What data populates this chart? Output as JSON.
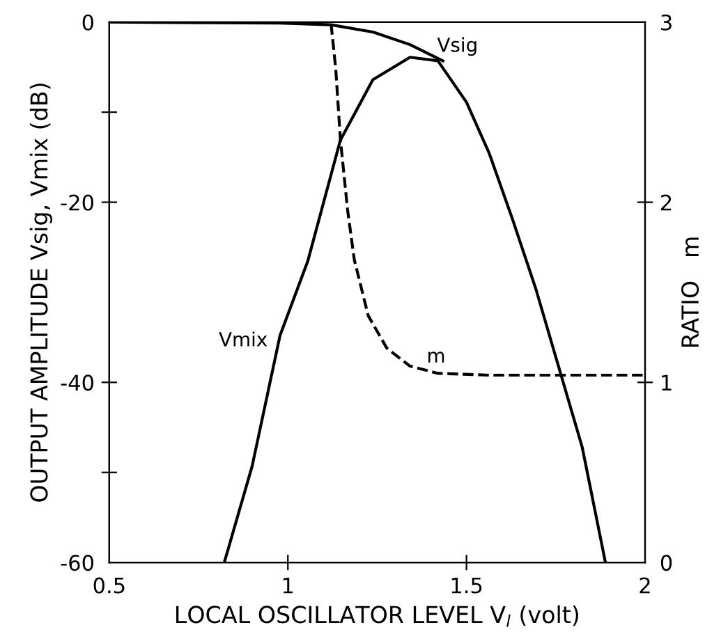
{
  "chart_data": {
    "type": "line",
    "xlabel": "LOCAL OSCILLATOR LEVEL V$_{l}$ (volt)",
    "ylabel": "OUTPUT AMPLITUDE Vsig, Vmix (dB)",
    "y2label": "RATIO   m",
    "xlim": [
      0.5,
      2
    ],
    "xticks": [
      0.5,
      1,
      1.5,
      2
    ],
    "ylim": [
      -60,
      0
    ],
    "yticks": [
      0,
      {
        "value": -10,
        "label": null
      },
      -20,
      -40,
      {
        "value": -50,
        "label": null
      },
      -60
    ],
    "y2lim": [
      0,
      3
    ],
    "y2ticks": [
      0,
      1,
      2,
      3
    ],
    "grid": false,
    "legend": false,
    "series": [
      {
        "color": "#000000",
        "line_style": "solid",
        "x": [
          0.822,
          0.9,
          0.978,
          1.056,
          1.147,
          1.238,
          1.342,
          1.42,
          1.5,
          1.564,
          1.629,
          1.694,
          1.759,
          1.824,
          1.889
        ],
        "values": [
          -60,
          -49.3,
          -34.8,
          -26.5,
          -13.1,
          -6.4,
          -3.9,
          -4.3,
          -8.9,
          -14.6,
          -21.9,
          -29.6,
          -38.4,
          -47.2,
          -60
        ]
      },
      {
        "color": "#000000",
        "line_style": "solid",
        "x": [
          0.5,
          0.978,
          1.121,
          1.238,
          1.342,
          1.434
        ],
        "values": [
          0,
          -0.1,
          -0.3,
          -1.1,
          -2.5,
          -4.3
        ]
      },
      {
        "color": "#000000",
        "line_style": "dashed",
        "axis": "y2",
        "x": [
          1.121,
          1.134,
          1.147,
          1.167,
          1.186,
          1.225,
          1.277,
          1.342,
          1.42,
          1.564,
          2.0
        ],
        "values": [
          2.99,
          2.74,
          2.35,
          1.96,
          1.68,
          1.37,
          1.19,
          1.09,
          1.05,
          1.04,
          1.04
        ]
      }
    ],
    "annotations": [
      "Vsig",
      "Vmix",
      "m"
    ]
  }
}
